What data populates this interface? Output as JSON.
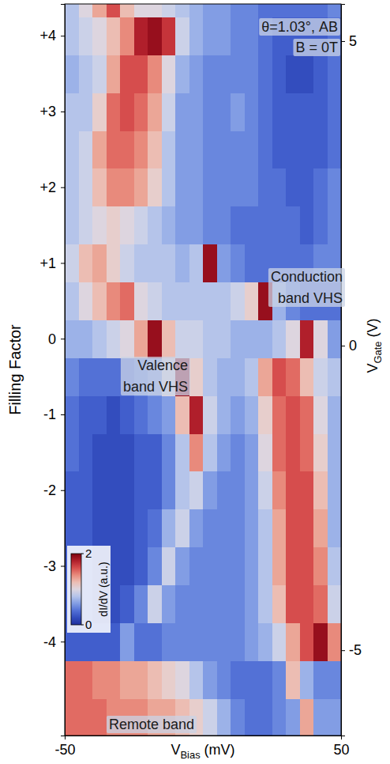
{
  "chart_data": {
    "type": "heatmap",
    "x_label": "VBias (mV)",
    "y_label": "Filling Factor",
    "y2_label": "VGate (V)",
    "xlim": [
      -50,
      50
    ],
    "xticks": [
      -50,
      50
    ],
    "ylim": [
      -5.24,
      4.42
    ],
    "yticks": [
      -4,
      -3,
      -2,
      -1,
      0,
      {
        "value": 1,
        "label": "+1"
      },
      {
        "value": 2,
        "label": "+2"
      },
      {
        "value": 3,
        "label": "+3"
      },
      {
        "value": 4,
        "label": "+4"
      }
    ],
    "y2lim": [
      -6.4,
      5.61
    ],
    "y2ticks": [
      -5,
      0,
      5
    ],
    "x": [
      -47.5,
      -42.5,
      -37.5,
      -32.5,
      -27.5,
      -22.5,
      -17.5,
      -12.5,
      -7.5,
      -2.5,
      2.5,
      7.5,
      12.5,
      17.5,
      22.5,
      27.5,
      32.5,
      37.5,
      42.5,
      47.5
    ],
    "y": [
      -5.0,
      -4.5,
      -4.0,
      -3.5,
      -3.0,
      -2.5,
      -2.0,
      -1.5,
      -1.0,
      -0.5,
      0.0,
      0.5,
      1.0,
      1.5,
      2.0,
      2.5,
      3.0,
      3.5,
      4.0,
      4.5
    ],
    "z": [
      [
        1.5,
        1.5,
        1.5,
        1.4,
        1.4,
        1.4,
        1.3,
        1.3,
        1.2,
        1.1,
        0.9,
        0.7,
        0.5,
        0.4,
        0.4,
        0.5,
        0.6,
        1.3,
        0.6,
        0.6
      ],
      [
        1.5,
        1.5,
        1.4,
        1.4,
        1.3,
        1.3,
        1.2,
        1.1,
        1.0,
        0.8,
        0.6,
        0.5,
        0.4,
        0.4,
        0.4,
        0.5,
        1.2,
        0.7,
        0.5,
        0.5
      ],
      [
        0.3,
        0.3,
        0.3,
        0.3,
        0.6,
        0.4,
        0.4,
        0.5,
        0.5,
        0.5,
        0.5,
        0.5,
        0.5,
        0.6,
        0.7,
        0.9,
        1.3,
        1.6,
        1.9,
        1.4
      ],
      [
        0.3,
        0.3,
        0.2,
        0.2,
        0.3,
        0.5,
        0.9,
        0.6,
        0.5,
        0.5,
        0.5,
        0.5,
        0.5,
        0.6,
        0.8,
        1.2,
        1.6,
        1.6,
        1.5,
        0.9
      ],
      [
        0.3,
        0.3,
        0.2,
        0.2,
        0.2,
        0.3,
        0.5,
        0.9,
        0.6,
        0.5,
        0.5,
        0.5,
        0.5,
        0.6,
        0.8,
        1.3,
        1.6,
        1.6,
        1.4,
        0.8
      ],
      [
        0.3,
        0.3,
        0.2,
        0.2,
        0.2,
        0.3,
        0.4,
        0.7,
        0.9,
        0.6,
        0.5,
        0.5,
        0.5,
        0.6,
        0.8,
        1.3,
        1.6,
        1.6,
        1.3,
        0.7
      ],
      [
        0.3,
        0.3,
        0.2,
        0.2,
        0.2,
        0.3,
        0.3,
        0.5,
        0.8,
        0.9,
        0.6,
        0.5,
        0.5,
        0.6,
        0.9,
        1.4,
        1.6,
        1.6,
        1.2,
        0.7
      ],
      [
        0.4,
        0.3,
        0.2,
        0.2,
        0.2,
        0.3,
        0.3,
        0.5,
        0.8,
        1.4,
        0.8,
        0.6,
        0.5,
        0.6,
        1.0,
        1.5,
        1.6,
        1.5,
        1.1,
        0.7
      ],
      [
        0.4,
        0.3,
        0.3,
        0.2,
        0.3,
        0.4,
        0.5,
        0.6,
        1.2,
        1.8,
        0.9,
        0.7,
        0.6,
        0.7,
        1.1,
        1.5,
        1.6,
        1.5,
        1.0,
        0.7
      ],
      [
        0.5,
        0.4,
        0.4,
        0.4,
        0.4,
        0.5,
        0.6,
        1.0,
        1.9,
        1.1,
        0.8,
        0.7,
        0.7,
        0.8,
        1.3,
        1.6,
        1.5,
        1.2,
        0.9,
        0.8
      ],
      [
        0.7,
        0.7,
        0.8,
        0.9,
        1.0,
        1.3,
        1.9,
        1.2,
        0.9,
        0.9,
        0.8,
        0.8,
        0.7,
        0.7,
        0.7,
        0.8,
        1.0,
        1.8,
        1.0,
        0.6
      ],
      [
        0.8,
        1.0,
        1.2,
        1.4,
        1.5,
        1.0,
        0.9,
        0.8,
        0.8,
        0.8,
        0.8,
        0.8,
        0.9,
        1.1,
        1.9,
        0.7,
        0.5,
        0.4,
        0.4,
        0.4
      ],
      [
        0.9,
        1.2,
        1.3,
        1.1,
        0.9,
        0.8,
        0.8,
        0.8,
        0.7,
        0.8,
        1.9,
        0.6,
        0.5,
        0.4,
        0.4,
        0.4,
        0.4,
        0.4,
        0.5,
        0.5
      ],
      [
        0.8,
        0.9,
        1.0,
        1.1,
        1.0,
        0.9,
        0.8,
        0.7,
        0.6,
        0.6,
        0.5,
        0.5,
        0.4,
        0.4,
        0.4,
        0.4,
        0.4,
        0.3,
        0.4,
        0.5
      ],
      [
        0.8,
        0.9,
        1.2,
        1.4,
        1.4,
        1.3,
        1.1,
        0.8,
        0.6,
        0.6,
        0.5,
        0.5,
        0.5,
        0.5,
        0.4,
        0.4,
        0.3,
        0.3,
        0.4,
        0.5
      ],
      [
        0.8,
        0.9,
        1.3,
        1.5,
        1.5,
        1.4,
        1.2,
        0.8,
        0.6,
        0.6,
        0.5,
        0.5,
        0.5,
        0.5,
        0.4,
        0.3,
        0.3,
        0.3,
        0.3,
        0.4
      ],
      [
        0.8,
        0.8,
        1.1,
        1.5,
        1.6,
        1.5,
        1.3,
        0.9,
        0.6,
        0.6,
        0.5,
        0.5,
        0.6,
        0.5,
        0.4,
        0.3,
        0.3,
        0.3,
        0.3,
        0.4
      ],
      [
        0.7,
        0.8,
        0.9,
        1.3,
        1.6,
        1.6,
        1.4,
        1.0,
        0.7,
        0.6,
        0.5,
        0.5,
        0.5,
        0.5,
        0.4,
        0.3,
        0.2,
        0.2,
        0.3,
        0.4
      ],
      [
        0.8,
        0.9,
        1.0,
        1.2,
        1.4,
        1.8,
        1.9,
        1.7,
        0.9,
        0.7,
        0.6,
        0.6,
        0.5,
        0.5,
        0.4,
        0.3,
        0.3,
        0.3,
        0.3,
        0.4
      ],
      [
        0.8,
        1.0,
        1.3,
        1.6,
        1.2,
        1.0,
        1.0,
        0.9,
        0.8,
        0.7,
        0.6,
        0.6,
        0.5,
        0.5,
        0.4,
        0.4,
        0.4,
        0.4,
        0.4,
        0.5
      ]
    ],
    "colorbar": {
      "label": "dI/dV (a.u.)",
      "range": [
        0,
        2
      ],
      "ticks": [
        0,
        2
      ]
    },
    "annotations": [
      "θ=1.03°, AB",
      "B = 0T",
      "Conduction band VHS",
      "Valence band VHS",
      "Remote band"
    ]
  }
}
